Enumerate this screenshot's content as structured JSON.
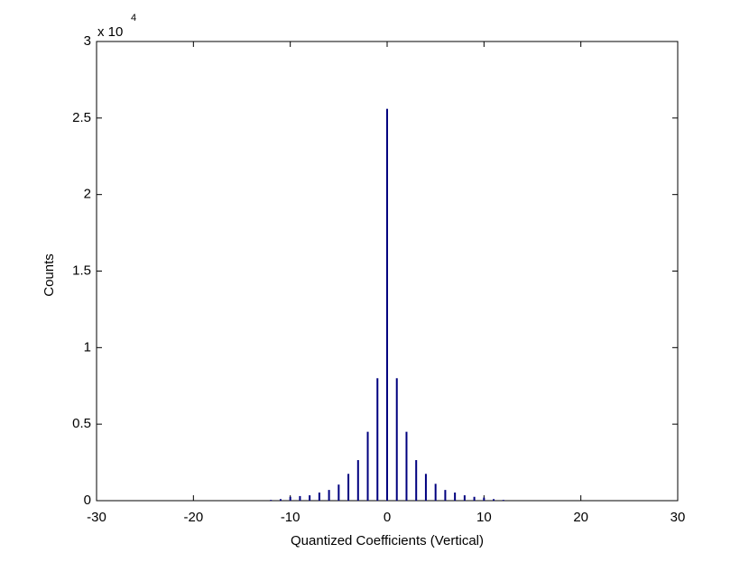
{
  "chart_data": {
    "type": "bar",
    "x_label": "Quantized Coefficients (Vertical)",
    "y_label": "Counts",
    "y_exponent_base": "x 10",
    "y_exponent": "4",
    "x": [
      -12,
      -11,
      -10,
      -9,
      -8,
      -7,
      -6,
      -5,
      -4,
      -3,
      -2,
      -1,
      0,
      1,
      2,
      3,
      4,
      5,
      6,
      7,
      8,
      9,
      10,
      11,
      12
    ],
    "values": [
      50,
      100,
      250,
      300,
      350,
      530,
      700,
      1050,
      1750,
      2650,
      4500,
      8000,
      25600,
      8000,
      4500,
      2650,
      1750,
      1100,
      700,
      530,
      350,
      250,
      200,
      100,
      50
    ],
    "color": "#00007f",
    "xlim": [
      -30,
      30
    ],
    "xticks": [
      -30,
      -20,
      -10,
      0,
      10,
      20,
      30
    ],
    "ylim": [
      0,
      30000
    ],
    "yticks": [
      0,
      {
        "value": 5000,
        "label": "0.5"
      },
      {
        "value": 10000,
        "label": "1"
      },
      {
        "value": 15000,
        "label": "1.5"
      },
      {
        "value": 20000,
        "label": "2"
      },
      {
        "value": 25000,
        "label": "2.5"
      },
      {
        "value": 30000,
        "label": "3"
      }
    ],
    "grid": false
  }
}
